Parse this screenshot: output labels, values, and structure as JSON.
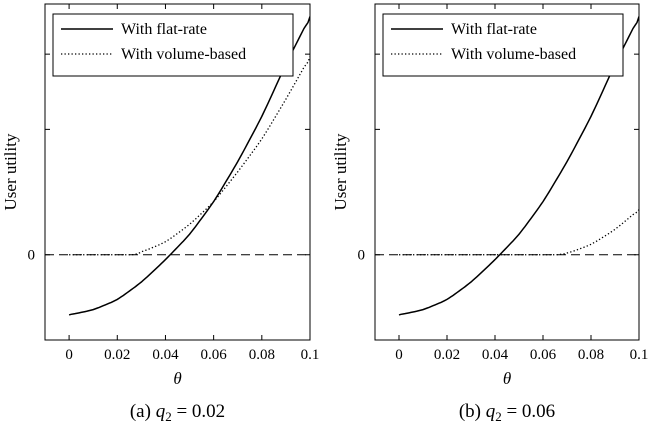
{
  "chart_data": [
    {
      "type": "line",
      "caption_prefix": "(a) ",
      "caption_math_var": "q",
      "caption_math_sub": "2",
      "caption_math_value": " = 0.02",
      "xlabel": "θ",
      "ylabel": "User utility",
      "xlim": [
        -0.01,
        0.1
      ],
      "ylim": [
        -0.34,
        1.0
      ],
      "xticks": [
        0,
        0.02,
        0.04,
        0.06,
        0.08,
        0.1
      ],
      "xtick_labels": [
        "0",
        "0.02",
        "0.04",
        "0.06",
        "0.08",
        "0.1"
      ],
      "yticks": [
        0
      ],
      "ytick_labels": [
        "0"
      ],
      "reference_line": {
        "y": 0,
        "style": "dashed"
      },
      "legend_position": "top-left",
      "series": [
        {
          "name": "With flat-rate",
          "style": "solid",
          "x": [
            0,
            0.01,
            0.02,
            0.03,
            0.04,
            0.05,
            0.06,
            0.07,
            0.08,
            0.09,
            0.1
          ],
          "y": [
            -0.24,
            -0.22,
            -0.18,
            -0.11,
            -0.02,
            0.08,
            0.21,
            0.37,
            0.55,
            0.76,
            0.95
          ]
        },
        {
          "name": "With volume-based",
          "style": "dotted",
          "x": [
            0,
            0.01,
            0.02,
            0.027,
            0.03,
            0.04,
            0.05,
            0.06,
            0.07,
            0.08,
            0.09,
            0.1
          ],
          "y": [
            0,
            0,
            0,
            0,
            0.01,
            0.05,
            0.12,
            0.21,
            0.33,
            0.46,
            0.62,
            0.79
          ]
        }
      ]
    },
    {
      "type": "line",
      "caption_prefix": "(b) ",
      "caption_math_var": "q",
      "caption_math_sub": "2",
      "caption_math_value": " = 0.06",
      "xlabel": "θ",
      "ylabel": "User utility",
      "xlim": [
        -0.01,
        0.1
      ],
      "ylim": [
        -0.34,
        1.0
      ],
      "xticks": [
        0,
        0.02,
        0.04,
        0.06,
        0.08,
        0.1
      ],
      "xtick_labels": [
        "0",
        "0.02",
        "0.04",
        "0.06",
        "0.08",
        "0.1"
      ],
      "yticks": [
        0
      ],
      "ytick_labels": [
        "0"
      ],
      "reference_line": {
        "y": 0,
        "style": "dashed"
      },
      "legend_position": "top-left",
      "series": [
        {
          "name": "With flat-rate",
          "style": "solid",
          "x": [
            0,
            0.01,
            0.02,
            0.03,
            0.04,
            0.05,
            0.06,
            0.07,
            0.08,
            0.09,
            0.1
          ],
          "y": [
            -0.24,
            -0.22,
            -0.18,
            -0.11,
            -0.02,
            0.08,
            0.21,
            0.37,
            0.55,
            0.76,
            0.95
          ]
        },
        {
          "name": "With volume-based",
          "style": "dotted",
          "x": [
            0,
            0.02,
            0.04,
            0.06,
            0.066,
            0.07,
            0.08,
            0.09,
            0.1
          ],
          "y": [
            0,
            0,
            0,
            0,
            0,
            0.005,
            0.04,
            0.1,
            0.18
          ]
        }
      ]
    }
  ]
}
